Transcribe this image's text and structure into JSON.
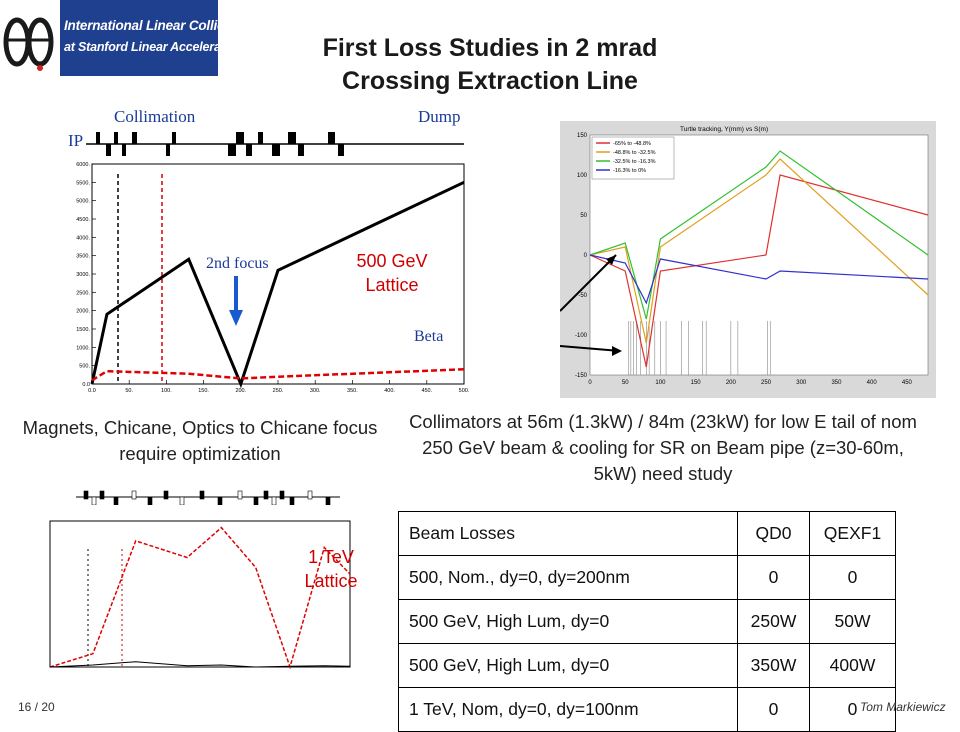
{
  "logo": {
    "line1": "International Linear Collider",
    "line2": "at Stanford Linear Accelerator Center"
  },
  "title": {
    "line1": "First Loss Studies in 2 mrad",
    "line2": "Crossing Extraction Line"
  },
  "figure1": {
    "label_collimation": "Collimation",
    "label_dump": "Dump",
    "label_ip": "IP",
    "label_2nd_focus": "2nd focus",
    "label_beta": "Beta",
    "lattice_label": "500 GeV Lattice",
    "chart_data": {
      "type": "line",
      "x": [
        0,
        20,
        130,
        200,
        250,
        500
      ],
      "series": [
        {
          "values": [
            0,
            1900,
            3400,
            0,
            3100,
            5500
          ]
        },
        {
          "values": [
            100,
            350,
            280,
            150,
            200,
            400
          ]
        }
      ],
      "xlim": [
        0,
        500
      ],
      "ylim": [
        0,
        6000
      ],
      "x_ticks": [
        "0.0",
        "50.",
        "100.",
        "150.",
        "200.",
        "250.",
        "300.",
        "350.",
        "400.",
        "450.",
        "500."
      ],
      "y_ticks": [
        "0.0",
        "500.",
        "1000.",
        "1500.",
        "2000.",
        "2500.",
        "3000.",
        "3500.",
        "4000.",
        "4500.",
        "5000.",
        "5500.",
        "6000."
      ],
      "colors": [
        "#000000",
        "#e00000"
      ]
    }
  },
  "figure2": {
    "title": "Turtle tracking, Y(mm) vs S(m)",
    "legend": [
      "-65% to -48.8%",
      "-48.8% to -32.5%",
      "-32.5% to -16.3%",
      "-16.3% to 0%"
    ],
    "chart_data": {
      "type": "line",
      "x": [
        0,
        50,
        80,
        100,
        250,
        270,
        480
      ],
      "series": [
        {
          "name": "-65% to -48.8%",
          "values": [
            0,
            -20,
            -140,
            -20,
            0,
            100,
            50
          ]
        },
        {
          "name": "-48.8% to -32.5%",
          "values": [
            0,
            10,
            -110,
            10,
            100,
            120,
            -50
          ]
        },
        {
          "name": "-32.5% to -16.3%",
          "values": [
            0,
            15,
            -80,
            20,
            110,
            130,
            0
          ]
        },
        {
          "name": "-16.3% to 0%",
          "values": [
            0,
            -10,
            -60,
            -5,
            -30,
            -20,
            -30
          ]
        }
      ],
      "xlim": [
        0,
        480
      ],
      "ylim": [
        -150,
        150
      ],
      "x_ticks": [
        "0",
        "50",
        "100",
        "150",
        "200",
        "250",
        "300",
        "350",
        "400",
        "450"
      ],
      "y_ticks": [
        "150",
        "100",
        "50",
        "0",
        "-50",
        "-100",
        "-150"
      ],
      "colors": [
        "#e03030",
        "#e0a020",
        "#30c030",
        "#3030d0"
      ]
    }
  },
  "figure3": {
    "lattice_label": "1 TeV Lattice",
    "chart_data": {
      "type": "line",
      "x": [
        0,
        50,
        100,
        160,
        200,
        240,
        280,
        320,
        350
      ],
      "series": [
        {
          "values": [
            0,
            200,
            1900,
            1650,
            2100,
            1500,
            0,
            1800,
            1400
          ]
        },
        {
          "values": [
            0,
            30,
            80,
            20,
            30,
            0,
            10,
            20,
            10
          ]
        }
      ],
      "xlim": [
        0,
        350
      ],
      "ylim": [
        0,
        2200
      ],
      "colors": [
        "#e00000",
        "#000000"
      ]
    }
  },
  "captions": {
    "left": "Magnets, Chicane, Optics to Chicane focus require optimization",
    "right": "Collimators at 56m (1.3kW) / 84m (23kW) for low E tail of nom 250 GeV beam & cooling for SR on Beam pipe (z=30-60m, 5kW) need study"
  },
  "table": {
    "headers": [
      "Beam Losses",
      "QD0",
      "QEXF1"
    ],
    "rows": [
      [
        "500, Nom., dy=0, dy=200nm",
        "0",
        "0"
      ],
      [
        "500 GeV, High Lum, dy=0",
        "250W",
        "50W"
      ],
      [
        "500 GeV, High Lum, dy=0",
        "350W",
        "400W"
      ],
      [
        "1 TeV, Nom, dy=0, dy=100nm",
        "0",
        "0"
      ]
    ]
  },
  "footer": {
    "page": "16 / 20",
    "author": "Tom Markiewicz"
  }
}
